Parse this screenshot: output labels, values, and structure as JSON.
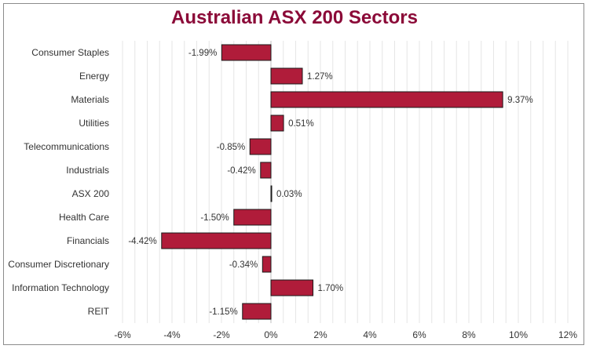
{
  "colors": {
    "title": "#8b0a38",
    "bar_fill": "#b01c3a",
    "bar_stroke": "#1a1a1a",
    "grid": "#e6e6e6",
    "text": "#333333"
  },
  "chart_data": {
    "type": "bar",
    "orientation": "horizontal",
    "title": "Australian ASX 200 Sectors",
    "xlabel": "",
    "ylabel": "",
    "categories": [
      "Consumer Staples",
      "Energy",
      "Materials",
      "Utilities",
      "Telecommunications",
      "Industrials",
      "ASX 200",
      "Health Care",
      "Financials",
      "Consumer Discretionary",
      "Information Technology",
      "REIT"
    ],
    "values": [
      -1.99,
      1.27,
      9.37,
      0.51,
      -0.85,
      -0.42,
      0.03,
      -1.5,
      -4.42,
      -0.34,
      1.7,
      -1.15
    ],
    "value_labels": [
      "-1.99%",
      "1.27%",
      "9.37%",
      "0.51%",
      "-0.85%",
      "-0.42%",
      "0.03%",
      "-1.50%",
      "-4.42%",
      "-0.34%",
      "1.70%",
      "-1.15%"
    ],
    "xlim": [
      -6,
      12
    ],
    "x_ticks": [
      -6,
      -4,
      -2,
      0,
      2,
      4,
      6,
      8,
      10,
      12
    ],
    "x_tick_labels": [
      "-6%",
      "-4%",
      "-2%",
      "0%",
      "2%",
      "4%",
      "6%",
      "8%",
      "10%",
      "12%"
    ],
    "grid": true,
    "legend": "none"
  }
}
